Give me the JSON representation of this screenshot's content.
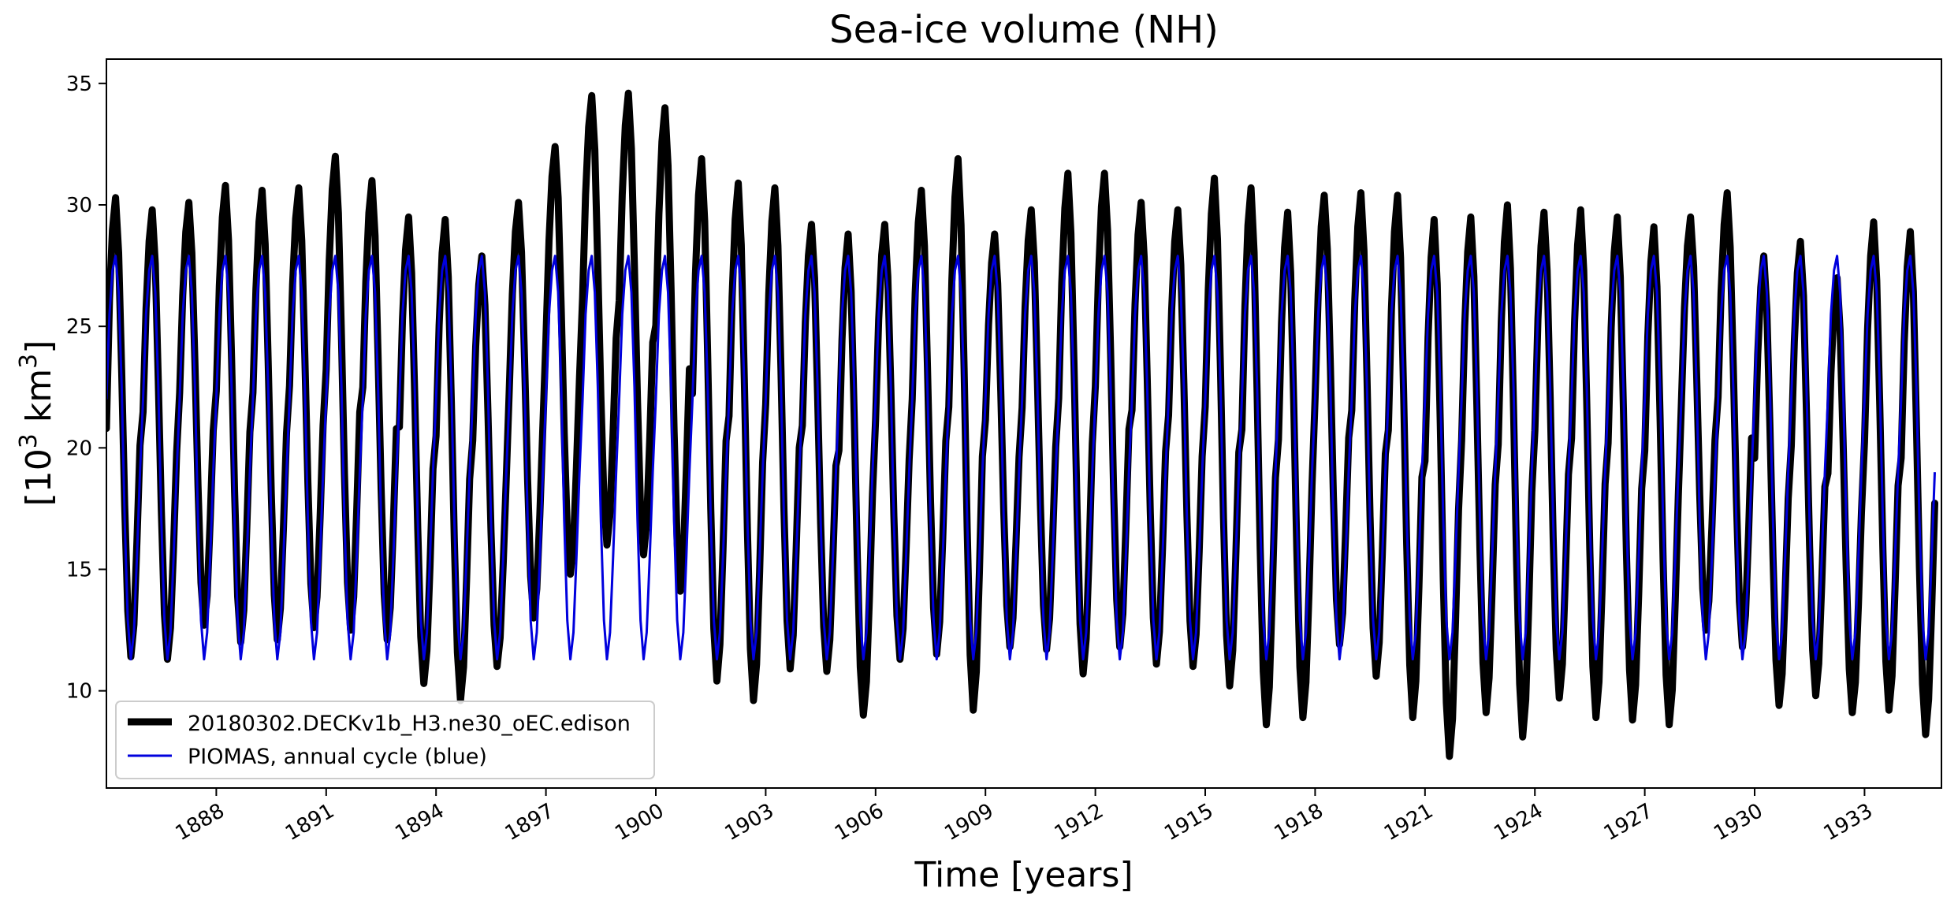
{
  "chart_data": {
    "type": "line",
    "title": "Sea-ice volume (NH)",
    "xlabel": "Time [years]",
    "ylabel": "[10^3 km^3]",
    "ylabel_parts": {
      "open": "[10",
      "sup1": "3",
      "mid": " km",
      "sup2": "3",
      "close": "]"
    },
    "xlim": [
      1885.0,
      1935.1
    ],
    "ylim": [
      6.0,
      36.0
    ],
    "xticks": [
      1888,
      1891,
      1894,
      1897,
      1900,
      1903,
      1906,
      1909,
      1912,
      1915,
      1918,
      1921,
      1924,
      1927,
      1930,
      1933
    ],
    "xtick_labels": [
      "1888",
      "1891",
      "1894",
      "1897",
      "1900",
      "1903",
      "1906",
      "1909",
      "1912",
      "1915",
      "1918",
      "1921",
      "1924",
      "1927",
      "1930",
      "1933"
    ],
    "yticks": [
      10,
      15,
      20,
      25,
      30,
      35
    ],
    "ytick_labels": [
      "10",
      "15",
      "20",
      "25",
      "30",
      "35"
    ],
    "start_year": 1885,
    "legend_position": "lower-left",
    "series": [
      {
        "name": "20180302.DECKv1b_H3.ne30_oEC.edison",
        "color": "#000000",
        "style": "thick",
        "start_value": 20.8,
        "annual_max": [
          30.3,
          29.8,
          30.1,
          30.8,
          30.6,
          30.7,
          32.0,
          31.0,
          29.5,
          29.4,
          27.9,
          30.1,
          32.4,
          34.5,
          34.6,
          34.0,
          31.9,
          30.9,
          30.7,
          29.2,
          28.8,
          29.2,
          30.6,
          31.9,
          28.8,
          29.8,
          31.3,
          31.3,
          30.1,
          29.8,
          31.1,
          30.7,
          29.7,
          30.4,
          30.5,
          30.4,
          29.4,
          29.5,
          30.0,
          29.7,
          29.8,
          29.5,
          29.1,
          29.5,
          30.5,
          27.9,
          28.5,
          27.0,
          29.3,
          28.9
        ],
        "annual_min": [
          11.4,
          11.3,
          12.7,
          12.0,
          12.1,
          12.6,
          12.5,
          12.1,
          10.3,
          9.6,
          11.0,
          13.0,
          14.8,
          16.0,
          15.6,
          14.1,
          10.4,
          9.6,
          10.9,
          10.8,
          9.0,
          11.3,
          11.5,
          9.2,
          11.8,
          11.7,
          10.7,
          11.8,
          11.1,
          11.0,
          10.2,
          8.6,
          8.9,
          11.9,
          10.6,
          8.9,
          7.3,
          9.1,
          8.1,
          9.7,
          8.9,
          8.8,
          8.6,
          12.5,
          11.8,
          9.4,
          9.8,
          9.1,
          9.2,
          8.2
        ]
      },
      {
        "name": "PIOMAS, annual cycle (blue)",
        "color": "#0000dd",
        "style": "thin",
        "monthly_cycle": [
          22.0,
          25.5,
          27.3,
          27.9,
          26.4,
          22.5,
          17.0,
          12.9,
          11.3,
          12.4,
          15.5,
          19.0
        ]
      }
    ]
  }
}
